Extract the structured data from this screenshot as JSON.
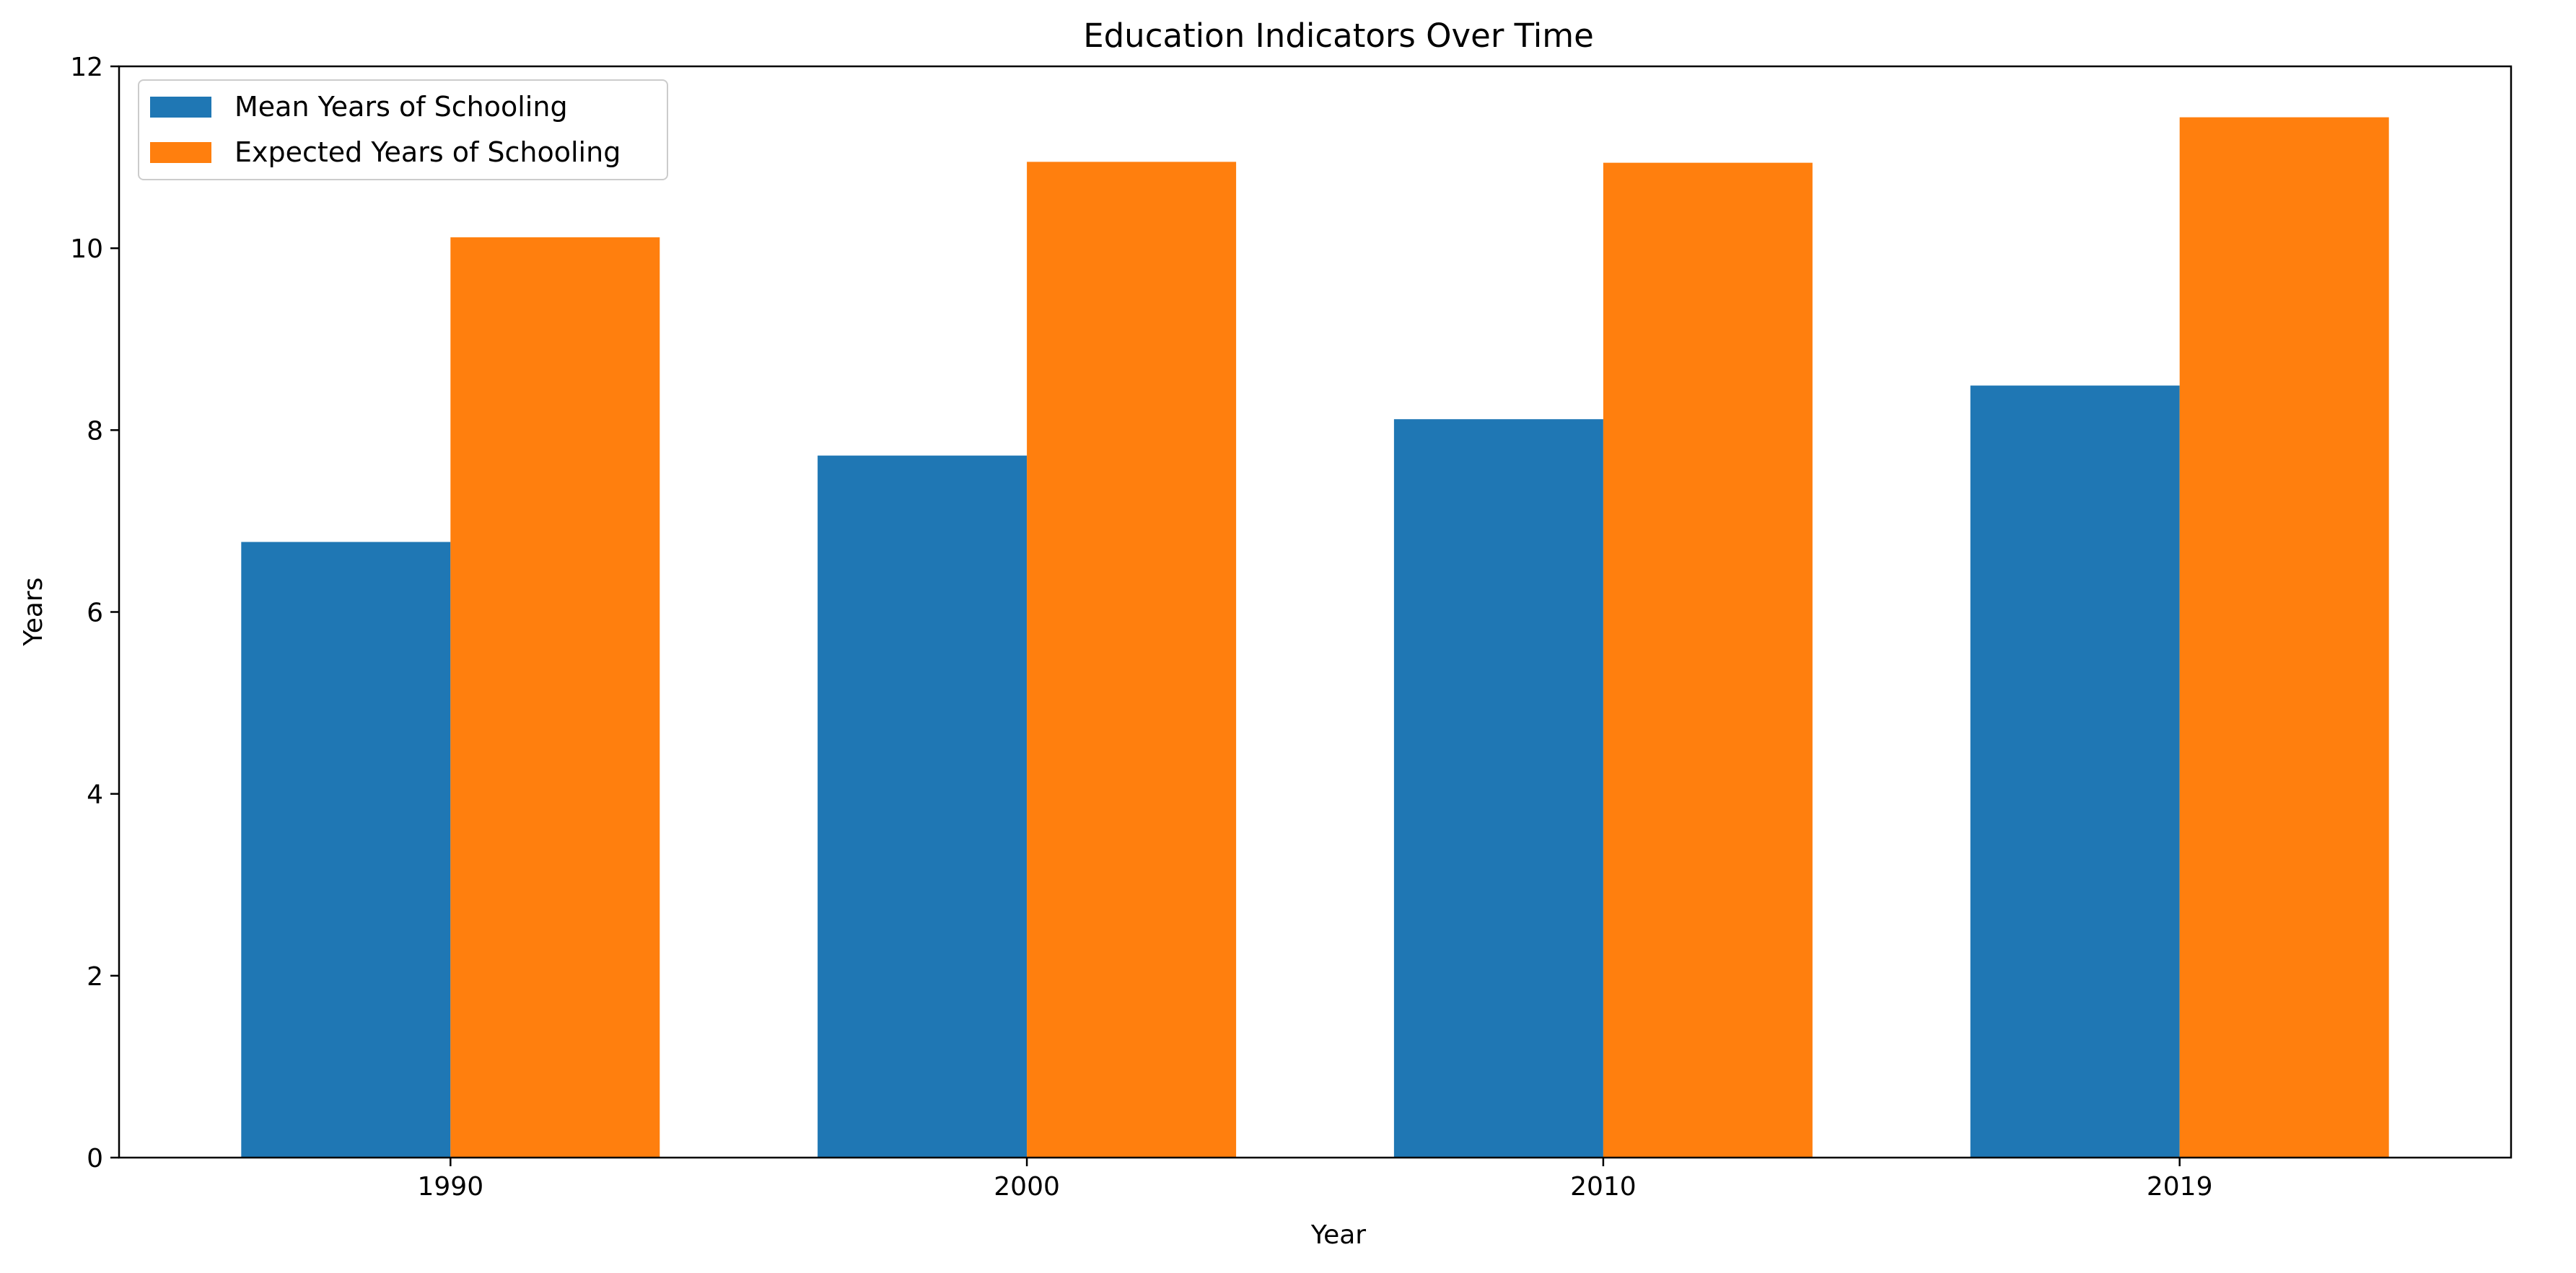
{
  "chart_data": {
    "type": "bar",
    "title": "Education Indicators Over Time",
    "xlabel": "Year",
    "ylabel": "Years",
    "categories": [
      "1990",
      "2000",
      "2010",
      "2019"
    ],
    "series": [
      {
        "name": "Mean Years of Schooling",
        "values": [
          6.77,
          7.72,
          8.12,
          8.49
        ],
        "color": "#1f77b4"
      },
      {
        "name": "Expected Years of Schooling",
        "values": [
          10.12,
          10.95,
          10.94,
          11.44
        ],
        "color": "#ff7f0e"
      }
    ],
    "ylim": [
      0,
      12
    ],
    "yticks": [
      "0",
      "2",
      "4",
      "6",
      "8",
      "10",
      "12"
    ],
    "grid": false,
    "legend_position": "top-left"
  }
}
